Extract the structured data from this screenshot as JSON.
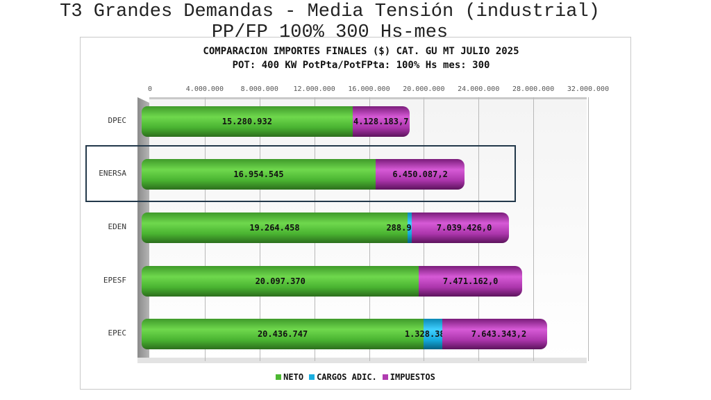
{
  "slide": {
    "title": "T3 Grandes Demandas - Media Tensión (industrial)",
    "subtitle": "PP/FP 100%  300 Hs-mes"
  },
  "chart_data": {
    "type": "bar",
    "orientation": "horizontal",
    "stacked": true,
    "title": "COMPARACION IMPORTES FINALES ($) CAT. GU MT  JULIO 2025",
    "subtitle": "POT: 400 KW PotPta/PotFPta: 100% Hs mes: 300",
    "categories": [
      "DPEC",
      "ENERSA",
      "EDEN",
      "EPESF",
      "EPEC"
    ],
    "series": [
      {
        "name": "NETO",
        "color": "#4cb832",
        "values": [
          15280932,
          16954545,
          19264458,
          20097370,
          20436747
        ],
        "labels": [
          "15.280.932",
          "16.954.545",
          "19.264.458",
          "20.097.370",
          "20.436.747"
        ]
      },
      {
        "name": "CARGOS ADIC.",
        "color": "#1aaee0",
        "values": [
          0,
          0,
          288960,
          0,
          1328389
        ],
        "labels": [
          "",
          "-",
          "288.960",
          "-",
          "1.328.389"
        ]
      },
      {
        "name": "IMPUESTOS",
        "color": "#b03cb0",
        "values": [
          4128183.7,
          6450087.2,
          7039426.0,
          7471162.0,
          7643343.2
        ],
        "labels": [
          "4.128.183,7",
          "6.450.087,2",
          "7.039.426,0",
          "7.471.162,0",
          "7.643.343,2"
        ]
      }
    ],
    "xlim": [
      0,
      32000000
    ],
    "xticks": [
      "0",
      "4.000.000",
      "8.000.000",
      "12.000.000",
      "16.000.000",
      "20.000.000",
      "24.000.000",
      "28.000.000",
      "32.000.000"
    ],
    "grid": true,
    "legend": "bottom",
    "highlighted_category": "ENERSA"
  }
}
